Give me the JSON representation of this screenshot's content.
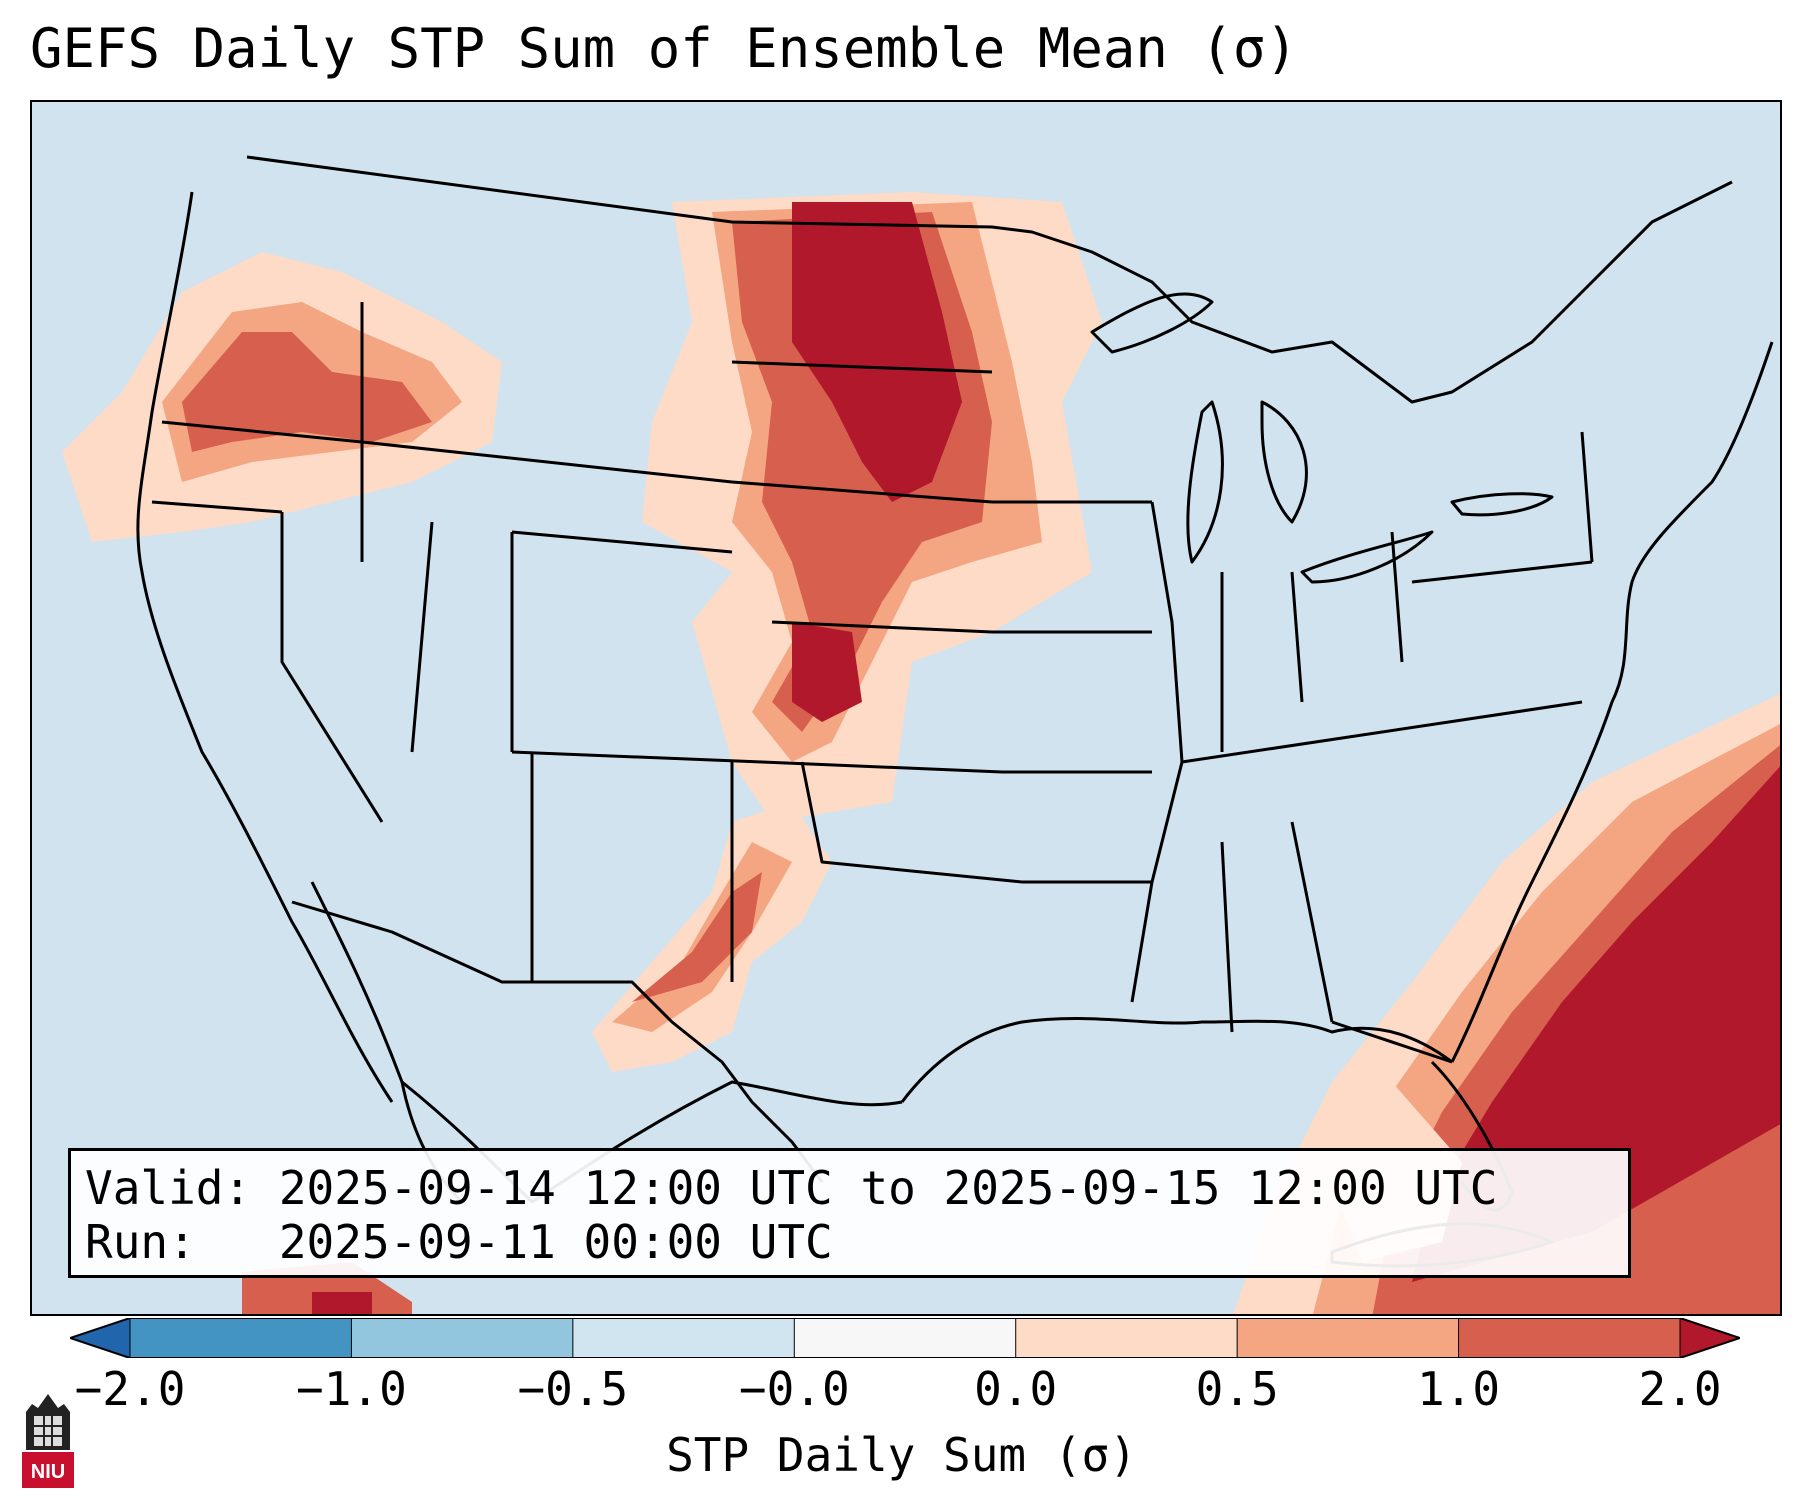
{
  "title": "GEFS Daily STP Sum of Ensemble Mean (σ)",
  "info": {
    "valid_line": "Valid: 2025-09-14 12:00 UTC to 2025-09-15 12:00 UTC",
    "run_line": "Run:   2025-09-11 00:00 UTC"
  },
  "colorbar": {
    "label": "STP Daily Sum (σ)",
    "bins": [
      {
        "from": -2.0,
        "to": -1.0,
        "color": "#4393c3"
      },
      {
        "from": -1.0,
        "to": -0.5,
        "color": "#92c5de"
      },
      {
        "from": -0.5,
        "to": -0.0,
        "color": "#d1e5f0"
      },
      {
        "from": -0.0,
        "to": 0.0,
        "color": "#f7f7f7"
      },
      {
        "from": 0.0,
        "to": 0.5,
        "color": "#fddbc7"
      },
      {
        "from": 0.5,
        "to": 1.0,
        "color": "#f4a582"
      },
      {
        "from": 1.0,
        "to": 2.0,
        "color": "#d6604d"
      }
    ],
    "under_color": "#2166ac",
    "over_color": "#b2182b",
    "tick_labels": [
      "−2.0",
      "−1.0",
      "−0.5",
      "−0.0",
      "0.0",
      "0.5",
      "1.0",
      "2.0"
    ]
  },
  "map": {
    "background_color": "#d0e3ef",
    "region": "Continental United States",
    "highlighted_regions": [
      "Northern Plains",
      "Central Plains",
      "Pacific Northwest",
      "Southern High Plains",
      "Western Atlantic / Bahamas"
    ]
  },
  "logo": {
    "text": "NIU",
    "icon": "university-tower-icon",
    "color": "#c8102e"
  }
}
